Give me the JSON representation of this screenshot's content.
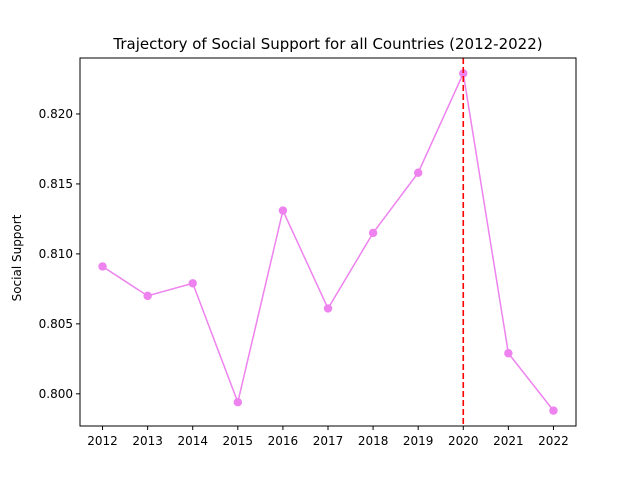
{
  "chart_data": {
    "type": "line",
    "title": "Trajectory of Social Support for all Countries (2012-2022)",
    "xlabel": "",
    "ylabel": "Social Support",
    "x": [
      2012,
      2013,
      2014,
      2015,
      2016,
      2017,
      2018,
      2019,
      2020,
      2021,
      2022
    ],
    "x_tick_labels": [
      "2012",
      "2013",
      "2014",
      "2015",
      "2016",
      "2017",
      "2018",
      "2019",
      "2020",
      "2021",
      "2022"
    ],
    "y_ticks": [
      0.8,
      0.805,
      0.81,
      0.815,
      0.82
    ],
    "y_tick_labels": [
      "0.800",
      "0.805",
      "0.810",
      "0.815",
      "0.820"
    ],
    "xlim": [
      2011.5,
      2022.5
    ],
    "ylim": [
      0.7977,
      0.824
    ],
    "series": [
      {
        "values": [
          0.8091,
          0.807,
          0.8079,
          0.7994,
          0.8131,
          0.8061,
          0.8115,
          0.8158,
          0.8229,
          0.8029,
          0.7988
        ],
        "color": "#ee82ee",
        "marker": "circle"
      }
    ],
    "vertical_line": {
      "x": 2020,
      "color": "#ff0000",
      "style": "dashed"
    },
    "grid": false,
    "legend": "none"
  }
}
